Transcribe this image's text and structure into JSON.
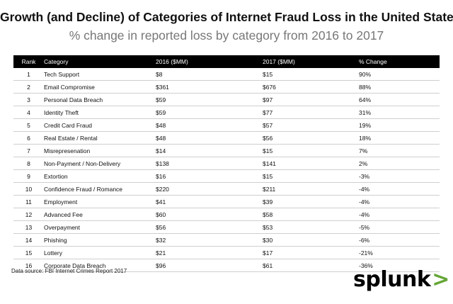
{
  "chart_data": {
    "type": "table",
    "title": "Growth (and Decline) of Categories of Internet Fraud Loss in the United States",
    "subtitle": "% change in reported loss by category from 2016 to 2017",
    "columns": [
      "Rank",
      "Category",
      "2016 ($MM)",
      "2017 ($MM)",
      "% Change"
    ],
    "rows": [
      [
        "1",
        "Tech Support",
        "$8",
        "$15",
        "90%"
      ],
      [
        "2",
        "Email Compromise",
        "$361",
        "$676",
        "88%"
      ],
      [
        "3",
        "Personal Data Breach",
        "$59",
        "$97",
        "64%"
      ],
      [
        "4",
        "Identity Theft",
        "$59",
        "$77",
        "31%"
      ],
      [
        "5",
        "Credit Card Fraud",
        "$48",
        "$57",
        "19%"
      ],
      [
        "6",
        "Real Estate / Rental",
        "$48",
        "$56",
        "18%"
      ],
      [
        "7",
        "Misrepresenation",
        "$14",
        "$15",
        "7%"
      ],
      [
        "8",
        "Non-Payment / Non-Delivery",
        "$138",
        "$141",
        "2%"
      ],
      [
        "9",
        "Extortion",
        "$16",
        "$15",
        "-3%"
      ],
      [
        "10",
        "Confidence Fraud / Romance",
        "$220",
        "$211",
        "-4%"
      ],
      [
        "11",
        "Employment",
        "$41",
        "$39",
        "-4%"
      ],
      [
        "12",
        "Advanced Fee",
        "$60",
        "$58",
        "-4%"
      ],
      [
        "13",
        "Overpayment",
        "$56",
        "$53",
        "-5%"
      ],
      [
        "14",
        "Phishing",
        "$32",
        "$30",
        "-6%"
      ],
      [
        "15",
        "Lottery",
        "$21",
        "$17",
        "-21%"
      ],
      [
        "16",
        "Corporate Data Breach",
        "$96",
        "$61",
        "-36%"
      ]
    ]
  },
  "footer": {
    "source": "Data source: FBI Internet Crimes Report 2017",
    "logo_text": "splunk",
    "logo_mark": ">"
  },
  "colors": {
    "header_bg": "#000000",
    "logo_accent": "#65a637"
  }
}
